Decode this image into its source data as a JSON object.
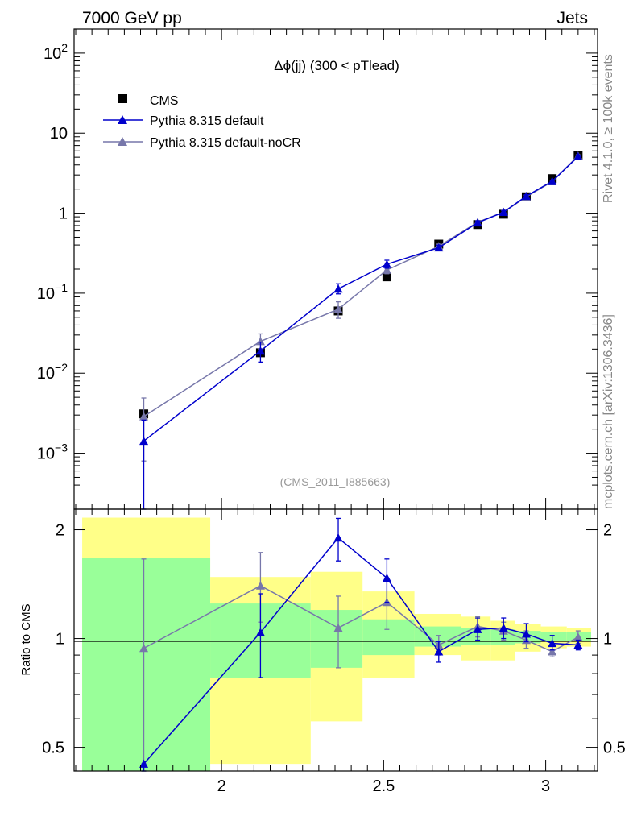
{
  "header": {
    "left": "7000 GeV pp",
    "right": "Jets"
  },
  "side_labels": {
    "rivet": "Rivet 4.1.0, ≥ 100k events",
    "mcplots": "mcplots.cern.ch [arXiv:1306.3436]"
  },
  "colors": {
    "data": "#000000",
    "pythia_default": "#0000cc",
    "pythia_nocr": "#7777aa",
    "band_inner": "#99ff99",
    "band_outer": "#ffff88"
  },
  "chart_data": [
    {
      "type": "scatter",
      "panel": "main",
      "title": "Δϕ(jj) (300 < pTlead)",
      "analysis_label": "(CMS_2011_I885663)",
      "yscale": "log",
      "xlim": [
        1.545,
        3.16
      ],
      "ylim": [
        0.0002,
        200
      ],
      "x_tick_labels": [
        "2",
        "2.5",
        "3"
      ],
      "y_tick_labels": [
        {
          "value": 0.001,
          "base": "10",
          "exp": "−3"
        },
        {
          "value": 0.01,
          "base": "10",
          "exp": "−2"
        },
        {
          "value": 0.1,
          "base": "10",
          "exp": "−1"
        },
        {
          "value": 1,
          "base": "1",
          "exp": ""
        },
        {
          "value": 10,
          "base": "10",
          "exp": ""
        },
        {
          "value": 100,
          "base": "10",
          "exp": "2"
        }
      ],
      "legend": [
        "CMS",
        "Pythia 8.315 default",
        "Pythia 8.315 default-noCR"
      ],
      "legend_position": "top-left",
      "series": [
        {
          "name": "CMS",
          "marker": "square",
          "x": [
            1.76,
            2.12,
            2.36,
            2.51,
            2.67,
            2.79,
            2.87,
            2.94,
            3.02,
            3.1
          ],
          "y": [
            0.0031,
            0.018,
            0.06,
            0.16,
            0.41,
            0.72,
            0.97,
            1.6,
            2.7,
            5.3
          ]
        },
        {
          "name": "Pythia 8.315 default",
          "marker": "triangle",
          "x": [
            1.76,
            2.12,
            2.36,
            2.51,
            2.67,
            2.79,
            2.87,
            2.94,
            3.02,
            3.1
          ],
          "y": [
            0.00142,
            0.019,
            0.113,
            0.23,
            0.37,
            0.76,
            1.03,
            1.63,
            2.5,
            5.1
          ],
          "y_low": [
            0.0001,
            0.0138,
            0.098,
            0.205,
            0.345,
            0.72,
            0.98,
            1.56,
            2.42,
            4.95
          ],
          "y_high": [
            0.0026,
            0.0245,
            0.131,
            0.258,
            0.398,
            0.8,
            1.08,
            1.7,
            2.58,
            5.25
          ]
        },
        {
          "name": "Pythia 8.315 default-noCR",
          "marker": "triangle",
          "x": [
            1.76,
            2.12,
            2.36,
            2.51,
            2.67,
            2.79,
            2.87,
            2.94,
            3.02,
            3.1
          ],
          "y": [
            0.00288,
            0.025,
            0.063,
            0.195,
            0.385,
            0.77,
            1.03,
            1.6,
            2.48,
            5.2
          ],
          "y_low": [
            0.0008,
            0.02,
            0.0485,
            0.175,
            0.36,
            0.73,
            0.98,
            1.54,
            2.4,
            5.05
          ],
          "y_high": [
            0.0049,
            0.031,
            0.078,
            0.218,
            0.41,
            0.81,
            1.08,
            1.66,
            2.56,
            5.35
          ]
        }
      ]
    },
    {
      "type": "scatter",
      "panel": "ratio",
      "ylabel": "Ratio to CMS",
      "yscale": "log",
      "xlim": [
        1.545,
        3.16
      ],
      "ylim": [
        0.43,
        2.28
      ],
      "y_tick_labels": [
        "0.5",
        "1",
        "2"
      ],
      "x_tick_labels": [
        "2",
        "2.5",
        "3"
      ],
      "bands": [
        {
          "x0": 1.57,
          "x1": 1.965,
          "inner": [
            0.36,
            1.67
          ],
          "outer": [
            0.33,
            2.16
          ]
        },
        {
          "x0": 1.965,
          "x1": 2.275,
          "inner": [
            0.78,
            1.25
          ],
          "outer": [
            0.45,
            1.48
          ]
        },
        {
          "x0": 2.275,
          "x1": 2.435,
          "inner": [
            0.83,
            1.2
          ],
          "outer": [
            0.59,
            1.53
          ]
        },
        {
          "x0": 2.435,
          "x1": 2.595,
          "inner": [
            0.9,
            1.13
          ],
          "outer": [
            0.78,
            1.35
          ]
        },
        {
          "x0": 2.595,
          "x1": 2.74,
          "inner": [
            0.95,
            1.08
          ],
          "outer": [
            0.9,
            1.17
          ]
        },
        {
          "x0": 2.74,
          "x1": 2.83,
          "inner": [
            0.96,
            1.07
          ],
          "outer": [
            0.87,
            1.15
          ]
        },
        {
          "x0": 2.83,
          "x1": 2.905,
          "inner": [
            0.96,
            1.06
          ],
          "outer": [
            0.87,
            1.12
          ]
        },
        {
          "x0": 2.905,
          "x1": 2.985,
          "inner": [
            0.97,
            1.05
          ],
          "outer": [
            0.92,
            1.1
          ]
        },
        {
          "x0": 2.985,
          "x1": 3.065,
          "inner": [
            0.98,
            1.04
          ],
          "outer": [
            0.94,
            1.08
          ]
        },
        {
          "x0": 3.065,
          "x1": 3.14,
          "inner": [
            0.98,
            1.04
          ],
          "outer": [
            0.95,
            1.07
          ]
        }
      ],
      "series": [
        {
          "name": "Pythia 8.315 default",
          "x": [
            1.76,
            2.12,
            2.36,
            2.51,
            2.67,
            2.79,
            2.87,
            2.94,
            3.02,
            3.1
          ],
          "y": [
            0.45,
            1.04,
            1.9,
            1.47,
            0.92,
            1.06,
            1.07,
            1.03,
            0.97,
            0.96
          ],
          "y_low": [
            0.43,
            0.78,
            1.64,
            1.26,
            0.86,
            0.99,
            1.0,
            0.98,
            0.93,
            0.93
          ],
          "y_high": [
            0.45,
            1.33,
            2.15,
            1.66,
            0.98,
            1.14,
            1.14,
            1.1,
            1.02,
            0.99
          ]
        },
        {
          "name": "Pythia 8.315 default-noCR",
          "x": [
            1.76,
            2.12,
            2.36,
            2.51,
            2.67,
            2.79,
            2.87,
            2.94,
            3.02,
            3.1
          ],
          "y": [
            0.94,
            1.4,
            1.07,
            1.26,
            0.96,
            1.08,
            1.05,
            0.99,
            0.92,
            1.01
          ],
          "y_low": [
            0.43,
            1.11,
            0.83,
            1.06,
            0.9,
            1.01,
            0.99,
            0.94,
            0.89,
            0.97
          ],
          "y_high": [
            1.66,
            1.73,
            1.31,
            1.47,
            1.02,
            1.15,
            1.11,
            1.05,
            0.96,
            1.05
          ]
        }
      ]
    }
  ]
}
